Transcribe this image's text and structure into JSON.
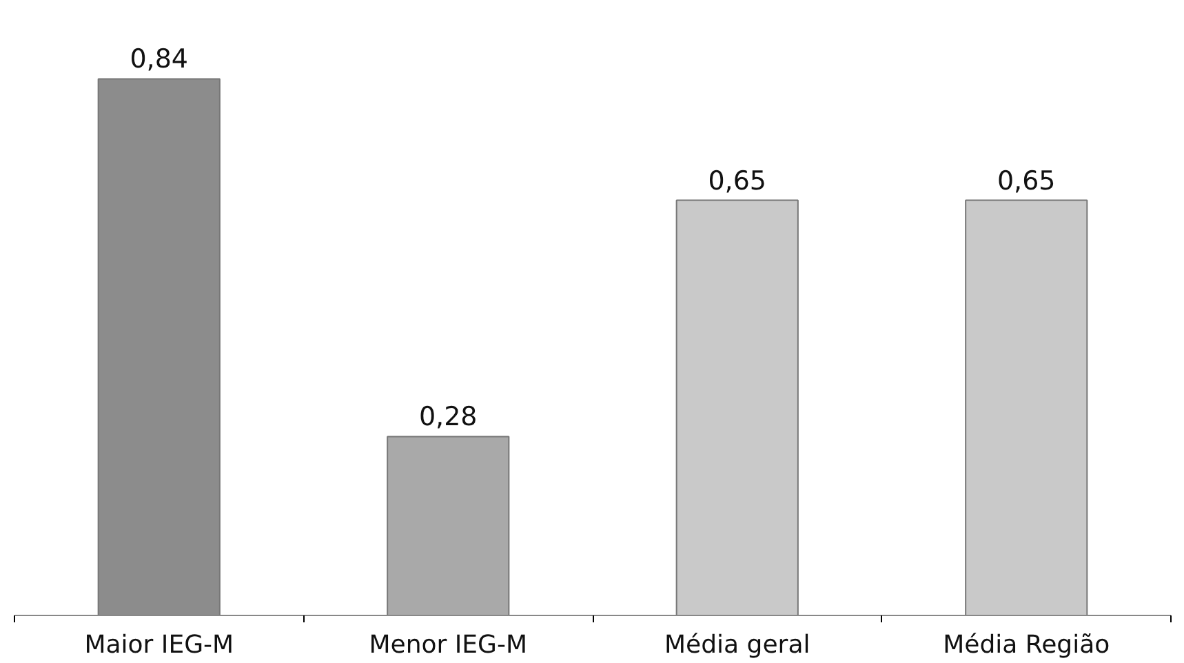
{
  "chart_data": {
    "type": "bar",
    "categories": [
      "Maior IEG-M",
      "Menor IEG-M",
      "Média geral",
      "Média Região"
    ],
    "values": [
      0.84,
      0.28,
      0.65,
      0.65
    ],
    "value_labels": [
      "0,84",
      "0,28",
      "0,65",
      "0,65"
    ],
    "colors": [
      "#8c8c8c",
      "#a9a9a9",
      "#c9c9c9",
      "#c9c9c9"
    ],
    "grid": false
  }
}
